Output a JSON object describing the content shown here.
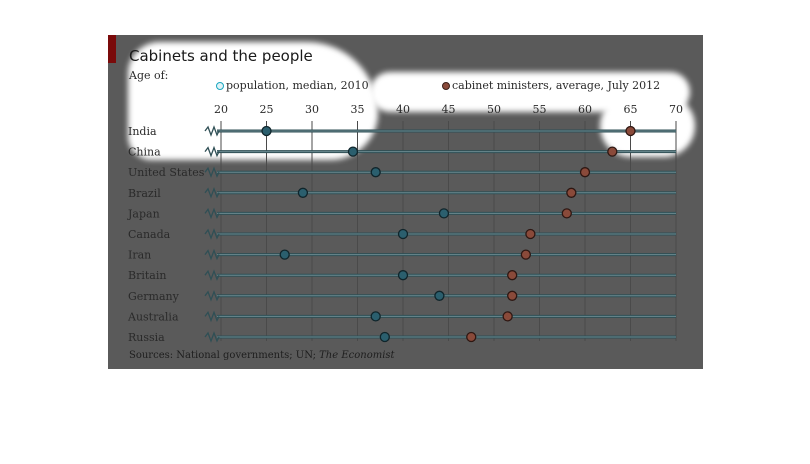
{
  "title": "Cabinets and the people",
  "subtitle": "Age of:",
  "source": {
    "prefix": "Sources: National governments; UN; ",
    "publication": "The Economist"
  },
  "colors": {
    "panel_bg": "#5a5a5a",
    "population_dot": "#2b5f6e",
    "cabinet_dot": "#8a4a3a",
    "accent_red": "#7a0a0a"
  },
  "icons": {
    "axis_break": "zigzag-break-icon"
  },
  "chart_data": {
    "type": "scatter",
    "title": "Cabinets and the people",
    "subtitle": "Age of:",
    "x_ticks": [
      20,
      25,
      30,
      35,
      40,
      45,
      50,
      55,
      60,
      65,
      70
    ],
    "xlim": [
      20,
      70
    ],
    "grid": true,
    "legend_position": "top",
    "categories": [
      "India",
      "China",
      "United States",
      "Brazil",
      "Japan",
      "Canada",
      "Iran",
      "Britain",
      "Germany",
      "Australia",
      "Russia"
    ],
    "series": [
      {
        "name": "population, median, 2010",
        "values": [
          25,
          34.5,
          37,
          29,
          44.5,
          40,
          27,
          40,
          44,
          37,
          38
        ]
      },
      {
        "name": "cabinet ministers, average, July 2012",
        "values": [
          65,
          63,
          60,
          58.5,
          58,
          54,
          53.5,
          52,
          52,
          51.5,
          47.5
        ]
      }
    ]
  }
}
